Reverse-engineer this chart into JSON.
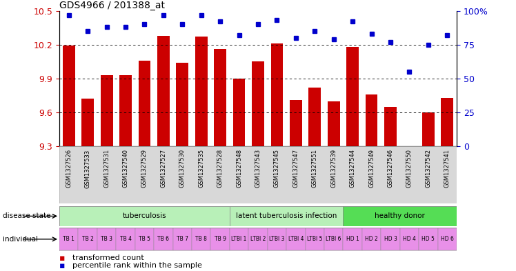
{
  "title": "GDS4966 / 201388_at",
  "samples": [
    "GSM1327526",
    "GSM1327533",
    "GSM1327531",
    "GSM1327540",
    "GSM1327529",
    "GSM1327527",
    "GSM1327530",
    "GSM1327535",
    "GSM1327528",
    "GSM1327548",
    "GSM1327543",
    "GSM1327545",
    "GSM1327547",
    "GSM1327551",
    "GSM1327539",
    "GSM1327544",
    "GSM1327549",
    "GSM1327546",
    "GSM1327550",
    "GSM1327542",
    "GSM1327541"
  ],
  "transformed_count": [
    10.19,
    9.72,
    9.93,
    9.93,
    10.06,
    10.28,
    10.04,
    10.27,
    10.16,
    9.9,
    10.05,
    10.21,
    9.71,
    9.82,
    9.7,
    10.18,
    9.76,
    9.65,
    9.3,
    9.6,
    9.73
  ],
  "percentile_rank": [
    97,
    85,
    88,
    88,
    90,
    97,
    90,
    97,
    92,
    82,
    90,
    93,
    80,
    85,
    79,
    92,
    83,
    77,
    55,
    75,
    82
  ],
  "disease_groups": [
    {
      "label": "tuberculosis",
      "start": 0,
      "end": 8,
      "color": "#b8f0b8"
    },
    {
      "label": "latent tuberculosis infection",
      "start": 9,
      "end": 14,
      "color": "#b8f0b8"
    },
    {
      "label": "healthy donor",
      "start": 15,
      "end": 20,
      "color": "#55dd55"
    }
  ],
  "individual_labels": [
    "TB 1",
    "TB 2",
    "TB 3",
    "TB 4",
    "TB 5",
    "TB 6",
    "TB 7",
    "TB 8",
    "TB 9",
    "LTBI 1",
    "LTBI 2",
    "LTBI 3",
    "LTBI 4",
    "LTBI 5",
    "LTBI 6",
    "HD 1",
    "HD 2",
    "HD 3",
    "HD 4",
    "HD 5",
    "HD 6"
  ],
  "ylim": [
    9.3,
    10.5
  ],
  "yticks": [
    9.3,
    9.6,
    9.9,
    10.2,
    10.5
  ],
  "bar_color": "#cc0000",
  "dot_color": "#0000cc",
  "right_ylim": [
    0,
    100
  ],
  "right_yticks": [
    0,
    25,
    50,
    75,
    100
  ],
  "ind_color_tb": "#e890e8",
  "ind_color_ltbi": "#e890e8",
  "ind_color_hd": "#e890e8",
  "ds_color_tb": "#b8f0b8",
  "ds_color_ltbi": "#b8f0b8",
  "ds_color_hd": "#55dd55",
  "xticklabel_bg": "#d8d8d8"
}
